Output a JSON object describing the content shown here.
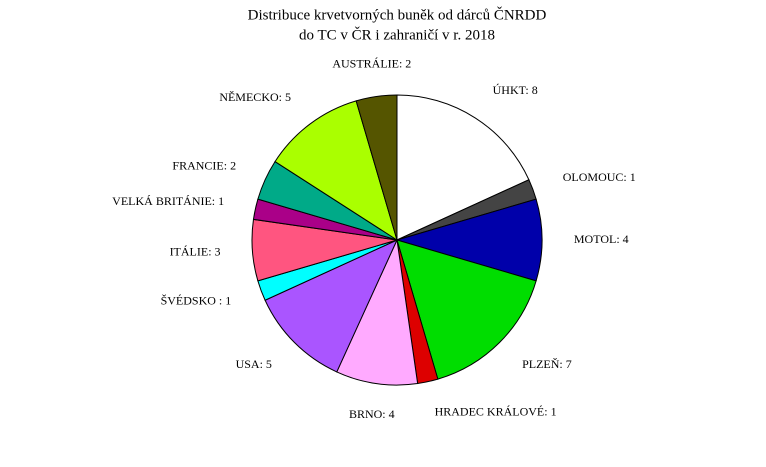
{
  "chart_data": {
    "type": "pie",
    "title": [
      "Distribuce krvetvorných buněk od dárců ČNRDD",
      "do TC v ČR i zahraničí v r. 2018"
    ],
    "values": [
      8,
      1,
      4,
      7,
      1,
      4,
      5,
      1,
      3,
      1,
      2,
      5,
      2
    ],
    "value_labels": [
      "ÚHKT: 8",
      "OLOMOUC: 1",
      "MOTOL: 4",
      "PLZEŇ: 7",
      "HRADEC KRÁLOVÉ: 1",
      "BRNO: 4",
      "USA: 5",
      "ŠVÉDSKO : 1",
      "ITÁLIE: 3",
      "VELKÁ BRITÁNIE: 1",
      "FRANCIE: 2",
      "NĚMECKO: 5",
      "AUSTRÁLIE: 2"
    ],
    "colors": [
      "#ffffff",
      "#444444",
      "#0000aa",
      "#00dd00",
      "#dd0000",
      "#ffaaff",
      "#aa55ff",
      "#00ffff",
      "#ff5580",
      "#aa0088",
      "#00aa88",
      "#aaff00",
      "#555500"
    ]
  }
}
